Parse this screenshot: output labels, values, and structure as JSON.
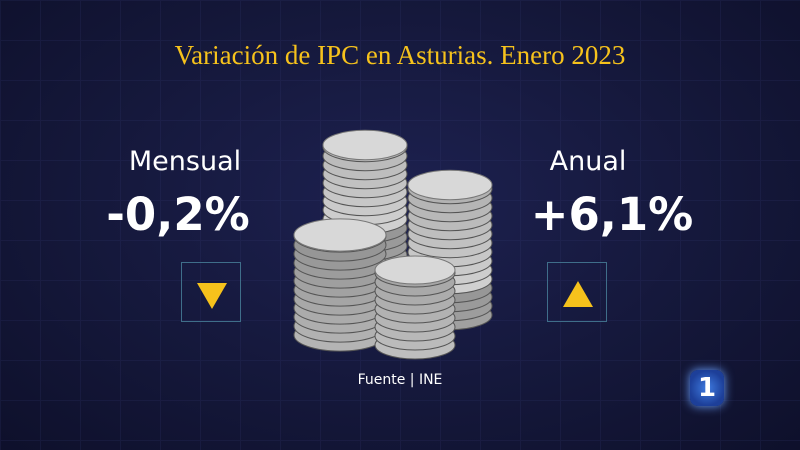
{
  "title": "Variación de IPC en Asturias. Enero 2023",
  "indicators": [
    {
      "label": "Mensual",
      "value": "-0,2%"
    },
    {
      "label": "Anual",
      "value": "+6,1%"
    }
  ],
  "source": "Fuente | INE",
  "logo": "1"
}
